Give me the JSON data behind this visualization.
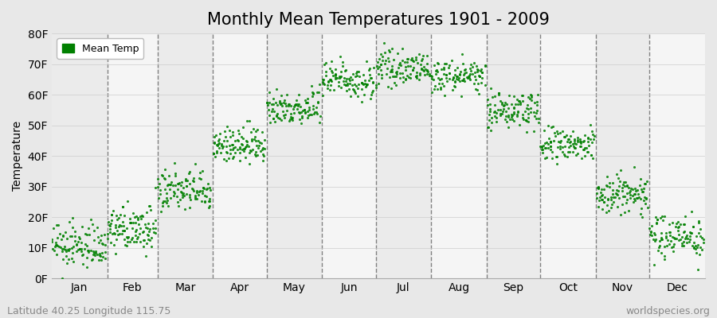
{
  "title": "Monthly Mean Temperatures 1901 - 2009",
  "ylabel": "Temperature",
  "xlabel_labels": [
    "Jan",
    "Feb",
    "Mar",
    "Apr",
    "May",
    "Jun",
    "Jul",
    "Aug",
    "Sep",
    "Oct",
    "Nov",
    "Dec"
  ],
  "ytick_labels": [
    "0F",
    "10F",
    "20F",
    "30F",
    "40F",
    "50F",
    "60F",
    "70F",
    "80F"
  ],
  "ytick_values": [
    0,
    10,
    20,
    30,
    40,
    50,
    60,
    70,
    80
  ],
  "ylim": [
    0,
    80
  ],
  "xlim": [
    0,
    365
  ],
  "dot_color": "#008000",
  "bg_color": "#E8E8E8",
  "plot_bg_color": "#F0F0F0",
  "legend_label": "Mean Temp",
  "footer_left": "Latitude 40.25 Longitude 115.75",
  "footer_right": "worldspecies.org",
  "title_fontsize": 15,
  "axis_fontsize": 10,
  "tick_fontsize": 10,
  "footer_fontsize": 9,
  "num_years": 109,
  "monthly_mean_temps_f": [
    10.5,
    16.0,
    28.5,
    43.5,
    56.0,
    65.0,
    68.5,
    66.0,
    55.0,
    43.5,
    27.5,
    14.0
  ],
  "monthly_std_f": [
    3.5,
    3.5,
    3.5,
    3.0,
    3.0,
    3.0,
    2.5,
    2.5,
    3.0,
    3.0,
    3.5,
    3.5
  ],
  "month_days": [
    31,
    28,
    31,
    30,
    31,
    30,
    31,
    31,
    30,
    31,
    30,
    31
  ],
  "dot_size": 5,
  "dot_alpha": 0.85,
  "legend_marker_size": 8,
  "dashed_color": "#666666",
  "dashed_lw": 1.0,
  "grid_color": "#CCCCCC",
  "grid_lw": 0.5,
  "alternating_colors": [
    "#EBEBEB",
    "#F5F5F5"
  ]
}
